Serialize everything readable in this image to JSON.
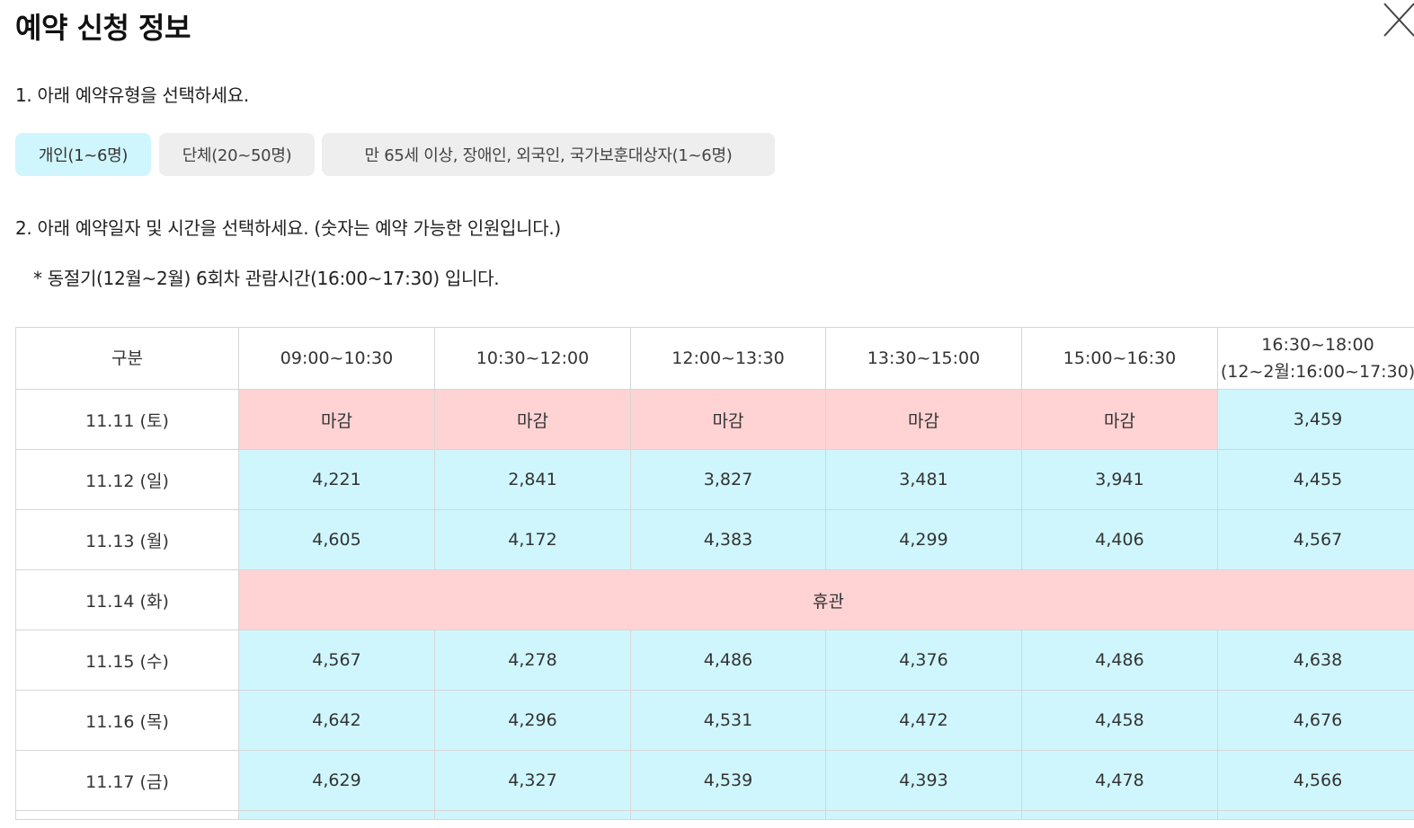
{
  "header": {
    "title": "예약 신청 정보",
    "close_icon": "close-icon"
  },
  "step1": {
    "label": "1. 아래 예약유형을 선택하세요.",
    "types": [
      {
        "label": "개인(1~6명)",
        "selected": true
      },
      {
        "label": "단체(20~50명)",
        "selected": false
      },
      {
        "label": "만 65세 이상, 장애인, 외국인, 국가보훈대상자(1~6명)",
        "selected": false
      }
    ]
  },
  "step2": {
    "label": "2. 아래 예약일자 및 시간을 선택하세요. (숫자는 예약 가능한 인원입니다.)",
    "note": "* 동절기(12월~2월) 6회차 관람시간(16:00~17:30) 입니다."
  },
  "colors": {
    "available": "#cff6fd",
    "closed": "#ffd3d4",
    "selected_type": "#cff6fd",
    "unselected_type": "#eeeeee"
  },
  "schedule": {
    "headers": [
      "구분",
      "09:00~10:30",
      "10:30~12:00",
      "12:00~13:30",
      "13:30~15:00",
      "15:00~16:30"
    ],
    "last_header": [
      "16:30~18:00",
      "(12~2월:16:00~17:30)"
    ],
    "rows": [
      {
        "date": "11.11 (토)",
        "cells": [
          "마감",
          "마감",
          "마감",
          "마감",
          "마감",
          "3,459"
        ],
        "status": [
          "closed",
          "closed",
          "closed",
          "closed",
          "closed",
          "open"
        ]
      },
      {
        "date": "11.12 (일)",
        "cells": [
          "4,221",
          "2,841",
          "3,827",
          "3,481",
          "3,941",
          "4,455"
        ],
        "status": [
          "open",
          "open",
          "open",
          "open",
          "open",
          "open"
        ]
      },
      {
        "date": "11.13 (월)",
        "cells": [
          "4,605",
          "4,172",
          "4,383",
          "4,299",
          "4,406",
          "4,567"
        ],
        "status": [
          "open",
          "open",
          "open",
          "open",
          "open",
          "open"
        ]
      },
      {
        "date": "11.14 (화)",
        "holiday": "휴관"
      },
      {
        "date": "11.15 (수)",
        "cells": [
          "4,567",
          "4,278",
          "4,486",
          "4,376",
          "4,486",
          "4,638"
        ],
        "status": [
          "open",
          "open",
          "open",
          "open",
          "open",
          "open"
        ]
      },
      {
        "date": "11.16 (목)",
        "cells": [
          "4,642",
          "4,296",
          "4,531",
          "4,472",
          "4,458",
          "4,676"
        ],
        "status": [
          "open",
          "open",
          "open",
          "open",
          "open",
          "open"
        ]
      },
      {
        "date": "11.17 (금)",
        "cells": [
          "4,629",
          "4,327",
          "4,539",
          "4,393",
          "4,478",
          "4,566"
        ],
        "status": [
          "open",
          "open",
          "open",
          "open",
          "open",
          "open"
        ]
      }
    ]
  }
}
